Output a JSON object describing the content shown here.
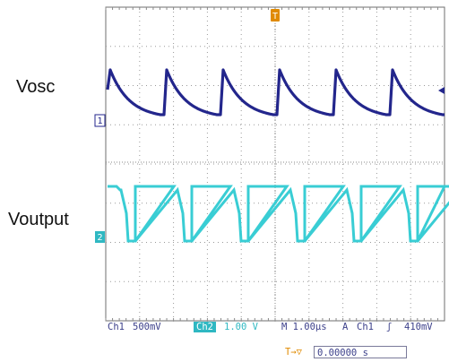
{
  "labels": {
    "vosc": "Vosc",
    "voutput": "Voutput"
  },
  "markers": {
    "ch1": "1",
    "ch2": "2",
    "trigger_pos": "T"
  },
  "status": {
    "ch1_label": "Ch1",
    "ch1_scale": "500mV",
    "ch2_label": "Ch2",
    "ch2_scale": "1.00 V",
    "time_base": "M 1.00µs",
    "trigger_mode": "A",
    "trigger_source": "Ch1",
    "trigger_slope": "ʃ",
    "trigger_level": "410mV",
    "trigger_offset_icon": "T→▽",
    "trigger_offset_value": "0.00000 s"
  },
  "colors": {
    "ch1_trace": "#23268c",
    "ch2_trace": "#39cdd4",
    "grid": "#9a9a9a",
    "trigger_marker": "#e08a00"
  },
  "icons": {
    "ch1_marker": "ch1-ground-marker-icon",
    "ch2_marker": "ch2-ground-marker-icon",
    "trigger_position": "trigger-position-icon",
    "trigger_level": "trigger-level-arrow-icon"
  }
}
